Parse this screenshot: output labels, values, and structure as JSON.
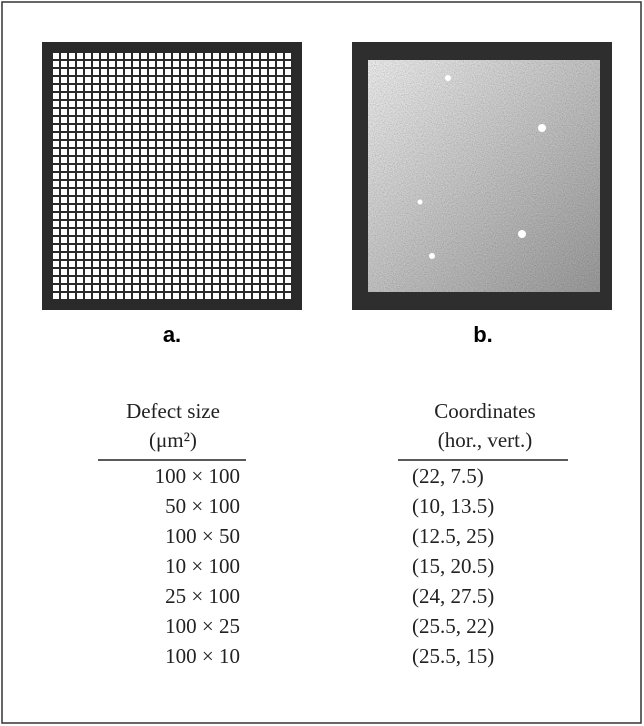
{
  "panels": [
    {
      "label": "a."
    },
    {
      "label": "b."
    }
  ],
  "table": {
    "headers": [
      [
        "Defect size",
        "(μm²)"
      ],
      [
        "Coordinates",
        "(hor., vert.)"
      ]
    ],
    "rows": [
      [
        "100 × 100",
        "(22, 7.5)"
      ],
      [
        "50 × 100",
        "(10, 13.5)"
      ],
      [
        "100 × 50",
        "(12.5, 25)"
      ],
      [
        "10 × 100",
        "(15, 20.5)"
      ],
      [
        "25 × 100",
        "(24, 27.5)"
      ],
      [
        "100 × 25",
        "(25.5, 22)"
      ],
      [
        "100 × 10",
        "(25.5, 15)"
      ]
    ]
  }
}
